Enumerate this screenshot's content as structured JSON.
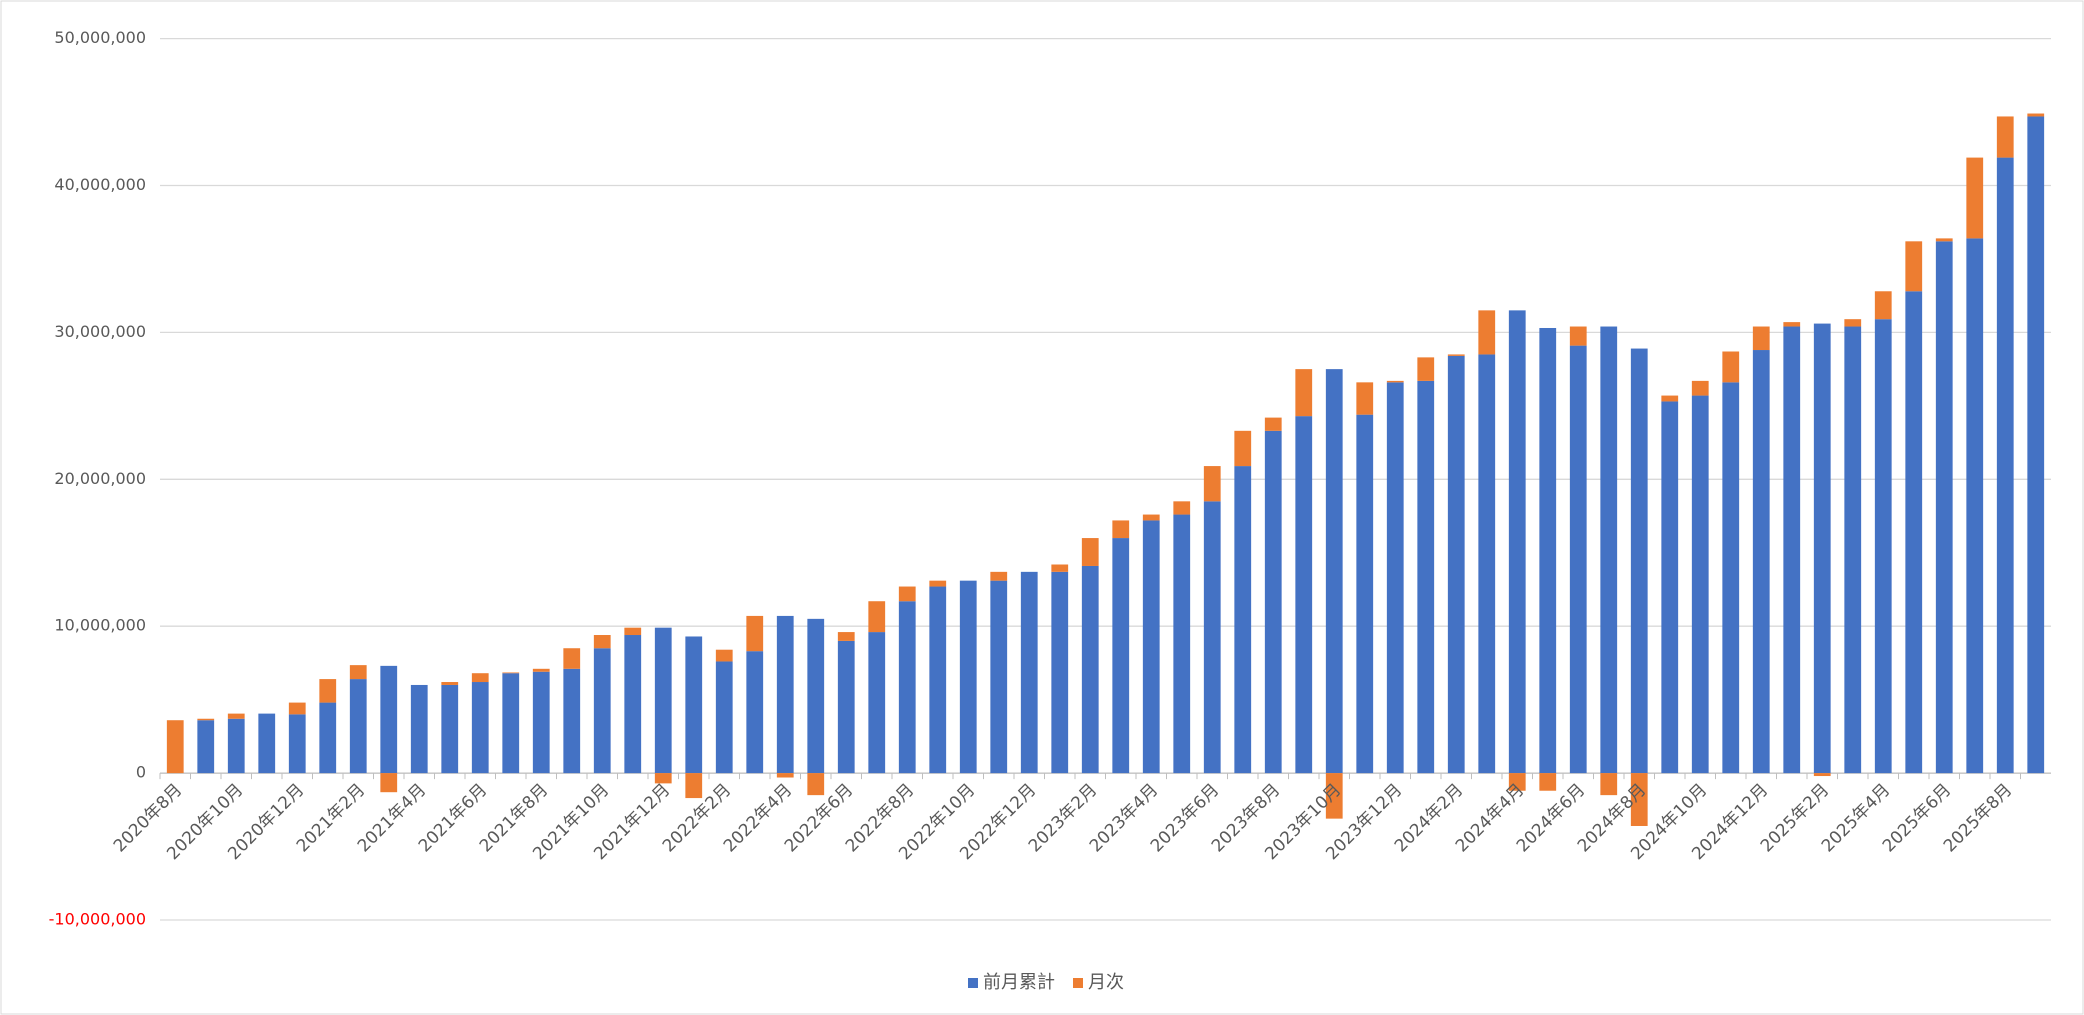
{
  "chart_data": {
    "type": "stacked_bar",
    "categories": [
      "2020年8月",
      null,
      "2020年10月",
      null,
      "2020年12月",
      null,
      "2021年2月",
      null,
      "2021年4月",
      null,
      "2021年6月",
      null,
      "2021年8月",
      null,
      "2021年10月",
      null,
      "2021年12月",
      null,
      "2022年2月",
      null,
      "2022年4月",
      null,
      "2022年6月",
      null,
      "2022年8月",
      null,
      "2022年10月",
      null,
      "2022年12月",
      null,
      "2023年2月",
      null,
      "2023年4月",
      null,
      "2023年6月",
      null,
      "2023年8月",
      null,
      "2023年10月",
      null,
      "2023年12月",
      null,
      "2024年2月",
      null,
      "2024年4月",
      null,
      "2024年6月",
      null,
      "2024年8月",
      null,
      "2024年10月",
      null,
      "2024年12月",
      null,
      "2025年2月",
      null,
      "2025年4月",
      null,
      "2025年6月",
      null,
      "2025年8月",
      null
    ],
    "series": [
      {
        "name": "前月累計",
        "color": "#4472c4",
        "values": [
          0,
          3600000,
          3700000,
          4050000,
          4000000,
          4800000,
          6400000,
          7300000,
          6000000,
          6000000,
          6200000,
          6800000,
          6900000,
          7100000,
          8500000,
          9400000,
          9900000,
          9300000,
          7600000,
          8300000,
          10700000,
          10500000,
          9000000,
          9600000,
          11700000,
          12700000,
          13100000,
          13100000,
          13700000,
          13700000,
          14100000,
          16000000,
          17200000,
          17600000,
          18500000,
          20900000,
          23300000,
          24300000,
          27500000,
          24400000,
          26600000,
          26700000,
          28400000,
          28500000,
          31500000,
          30300000,
          29100000,
          30400000,
          28900000,
          25300000,
          25700000,
          26600000,
          28800000,
          30400000,
          30600000,
          30400000,
          30900000,
          32800000,
          36200000,
          36400000,
          41900000,
          44700000
        ]
      },
      {
        "name": "月次",
        "color": "#ed7d31",
        "values": [
          3600000,
          100000,
          350000,
          0,
          800000,
          1600000,
          950000,
          -1300000,
          0,
          200000,
          600000,
          50000,
          200000,
          1400000,
          900000,
          500000,
          -700000,
          -1700000,
          800000,
          2400000,
          -300000,
          -1500000,
          600000,
          2100000,
          1000000,
          400000,
          0,
          600000,
          0,
          500000,
          1900000,
          1200000,
          400000,
          900000,
          2400000,
          2400000,
          900000,
          3200000,
          -3100000,
          2200000,
          100000,
          1600000,
          100000,
          3000000,
          -1200000,
          -1200000,
          1300000,
          -1500000,
          -3600000,
          400000,
          1000000,
          2100000,
          1600000,
          300000,
          -200000,
          500000,
          1900000,
          3400000,
          200000,
          5500000,
          2800000,
          200000
        ]
      }
    ],
    "ylim": [
      -10000000,
      50000000
    ],
    "yticks": [
      {
        "value": -10000000,
        "label": "-10,000,000"
      },
      0,
      {
        "value": 10000000,
        "label": "10,000,000"
      },
      {
        "value": 20000000,
        "label": "20,000,000"
      },
      {
        "value": 30000000,
        "label": "30,000,000"
      },
      {
        "value": 40000000,
        "label": "40,000,000"
      },
      {
        "value": 50000000,
        "label": "50,000,000"
      }
    ],
    "negative_tick_label_color": "#ff0000",
    "grid": true,
    "legend": "bottom"
  }
}
